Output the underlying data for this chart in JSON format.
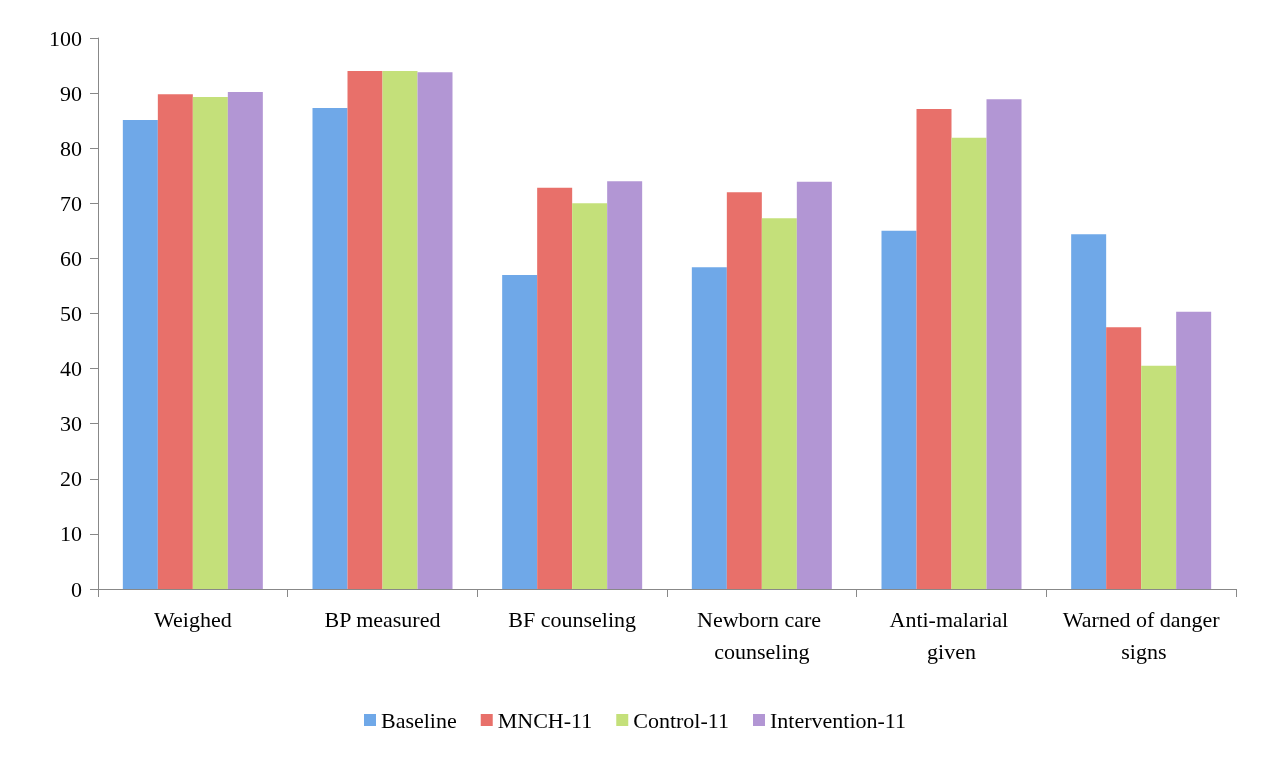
{
  "chart_data": {
    "type": "bar",
    "categories": [
      "Weighed",
      "BP measured",
      "BF counseling",
      "Newborn care counseling",
      "Anti-malarial given",
      "Warned of danger signs"
    ],
    "series": [
      {
        "name": "Baseline",
        "color": "#6fa8e8",
        "values": [
          85.1,
          87.3,
          57,
          58.4,
          65,
          64.4
        ]
      },
      {
        "name": "MNCH-11",
        "color": "#e8706a",
        "values": [
          89.8,
          94,
          72.8,
          72,
          87.1,
          47.5
        ]
      },
      {
        "name": "Control-11",
        "color": "#c4e07a",
        "values": [
          89.3,
          94,
          70,
          67.3,
          81.9,
          40.5
        ]
      },
      {
        "name": "Intervention-11",
        "color": "#b296d4",
        "values": [
          90.2,
          93.8,
          74,
          73.9,
          88.9,
          50.3
        ]
      }
    ],
    "ylim": [
      0,
      100
    ],
    "yticks": [
      0,
      10,
      20,
      30,
      40,
      50,
      60,
      70,
      80,
      90,
      100
    ],
    "grid": false,
    "legend": "bottom"
  }
}
